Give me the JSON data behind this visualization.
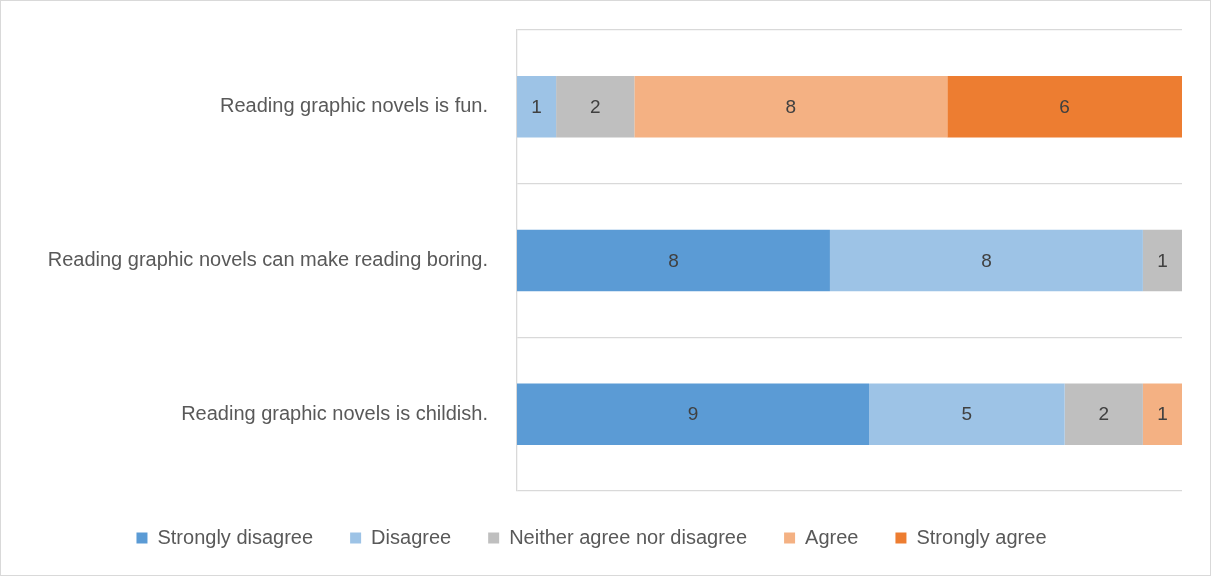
{
  "chart_data": {
    "type": "bar",
    "orientation": "horizontal",
    "stacked": true,
    "categories": [
      "Reading graphic novels is fun.",
      "Reading graphic novels can make reading boring.",
      "Reading graphic novels is childish."
    ],
    "series": [
      {
        "name": "Strongly disagree",
        "color": "#5b9bd5",
        "values": [
          null,
          8,
          9
        ]
      },
      {
        "name": "Disagree",
        "color": "#9dc3e6",
        "values": [
          1,
          8,
          5
        ]
      },
      {
        "name": "Neither agree nor disagree",
        "color": "#bfbfbf",
        "values": [
          2,
          1,
          2
        ]
      },
      {
        "name": "Agree",
        "color": "#f4b183",
        "values": [
          8,
          null,
          1
        ]
      },
      {
        "name": "Strongly agree",
        "color": "#ed7d31",
        "values": [
          6,
          null,
          null
        ]
      }
    ],
    "xlim": [
      0,
      17
    ],
    "tick_labels": "y",
    "grid": "y",
    "legend": "bottom",
    "data_labels": true
  }
}
